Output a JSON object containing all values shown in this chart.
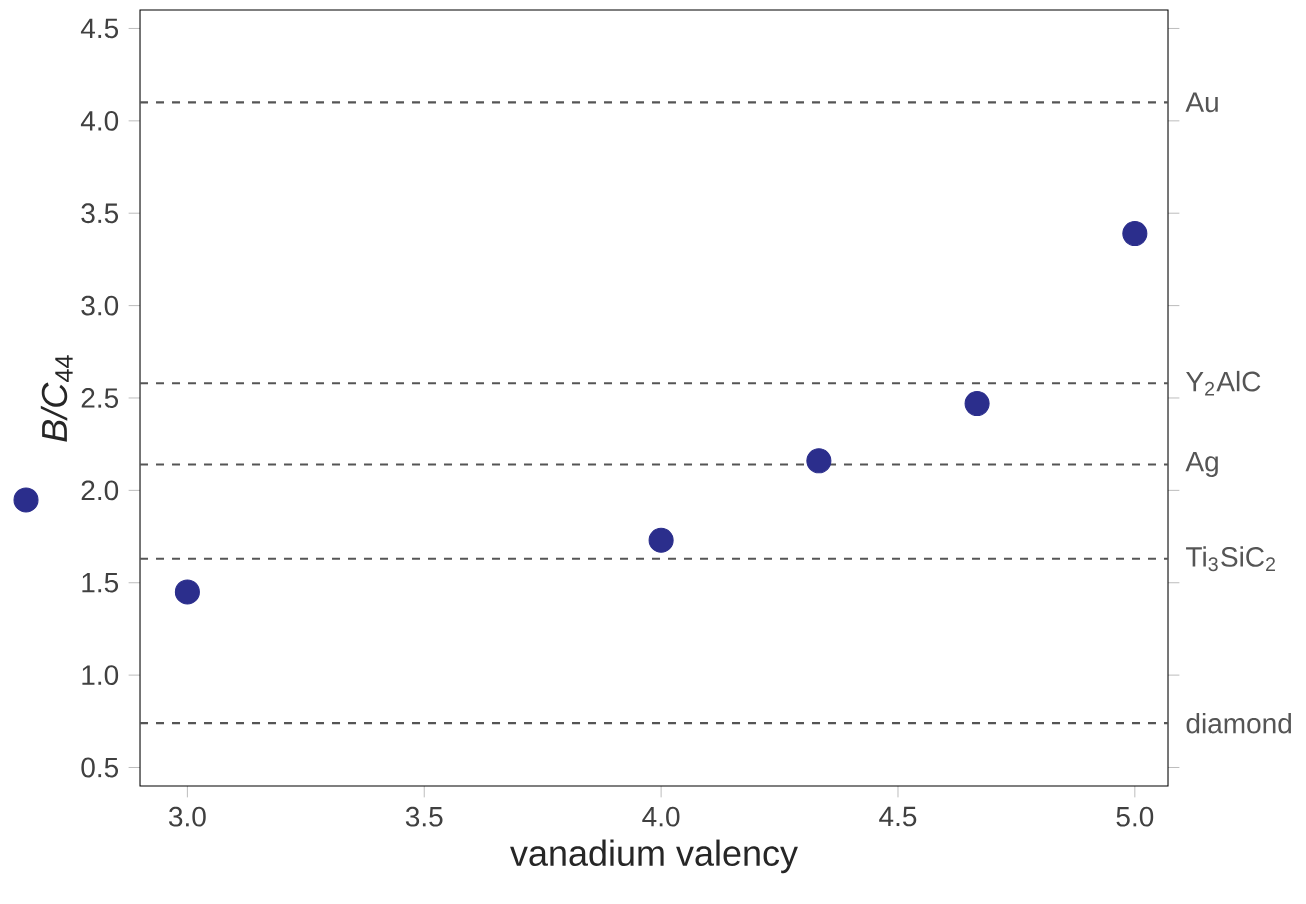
{
  "chart_data": {
    "type": "scatter",
    "xlabel": "vanadium valency",
    "ylabel": "*B/C*$_{44}$",
    "x": [
      3.0,
      4.0,
      4.333,
      4.667,
      5.0
    ],
    "series": [
      {
        "color": "#2b2e8c",
        "values": [
          1.45,
          1.73,
          2.16,
          2.47,
          3.39
        ]
      }
    ],
    "xlim": [
      2.9,
      5.07
    ],
    "ylim": [
      0.4,
      4.6
    ],
    "xticks": [
      {
        "value": 3,
        "label": "3.0"
      },
      3.5,
      {
        "value": 4,
        "label": "4.0"
      },
      4.5,
      {
        "value": 5,
        "label": "5.0"
      }
    ],
    "yticks": [
      0.5,
      {
        "value": 1,
        "label": "1.0"
      },
      1.5,
      {
        "value": 2,
        "label": "2.0"
      },
      2.5,
      {
        "value": 3,
        "label": "3.0"
      },
      3.5,
      {
        "value": 4,
        "label": "4.0"
      },
      4.5
    ],
    "ref_lines": [
      {
        "axis": "y",
        "value": 4.1,
        "label": "Au",
        "color": "#555555",
        "line_style": "dashed"
      },
      {
        "axis": "y",
        "value": 2.58,
        "label": "Y$_{2}$AlC",
        "color": "#555555",
        "line_style": "dashed"
      },
      {
        "axis": "y",
        "value": 2.14,
        "label": "Ag",
        "color": "#555555",
        "line_style": "dashed"
      },
      {
        "axis": "y",
        "value": 1.63,
        "label": "Ti$_{3}$SiC$_{2}$",
        "color": "#555555",
        "line_style": "dashed"
      },
      {
        "axis": "y",
        "value": 0.74,
        "label": "diamond",
        "color": "#555555",
        "line_style": "dashed"
      }
    ],
    "marker": "circle",
    "grid": false
  }
}
